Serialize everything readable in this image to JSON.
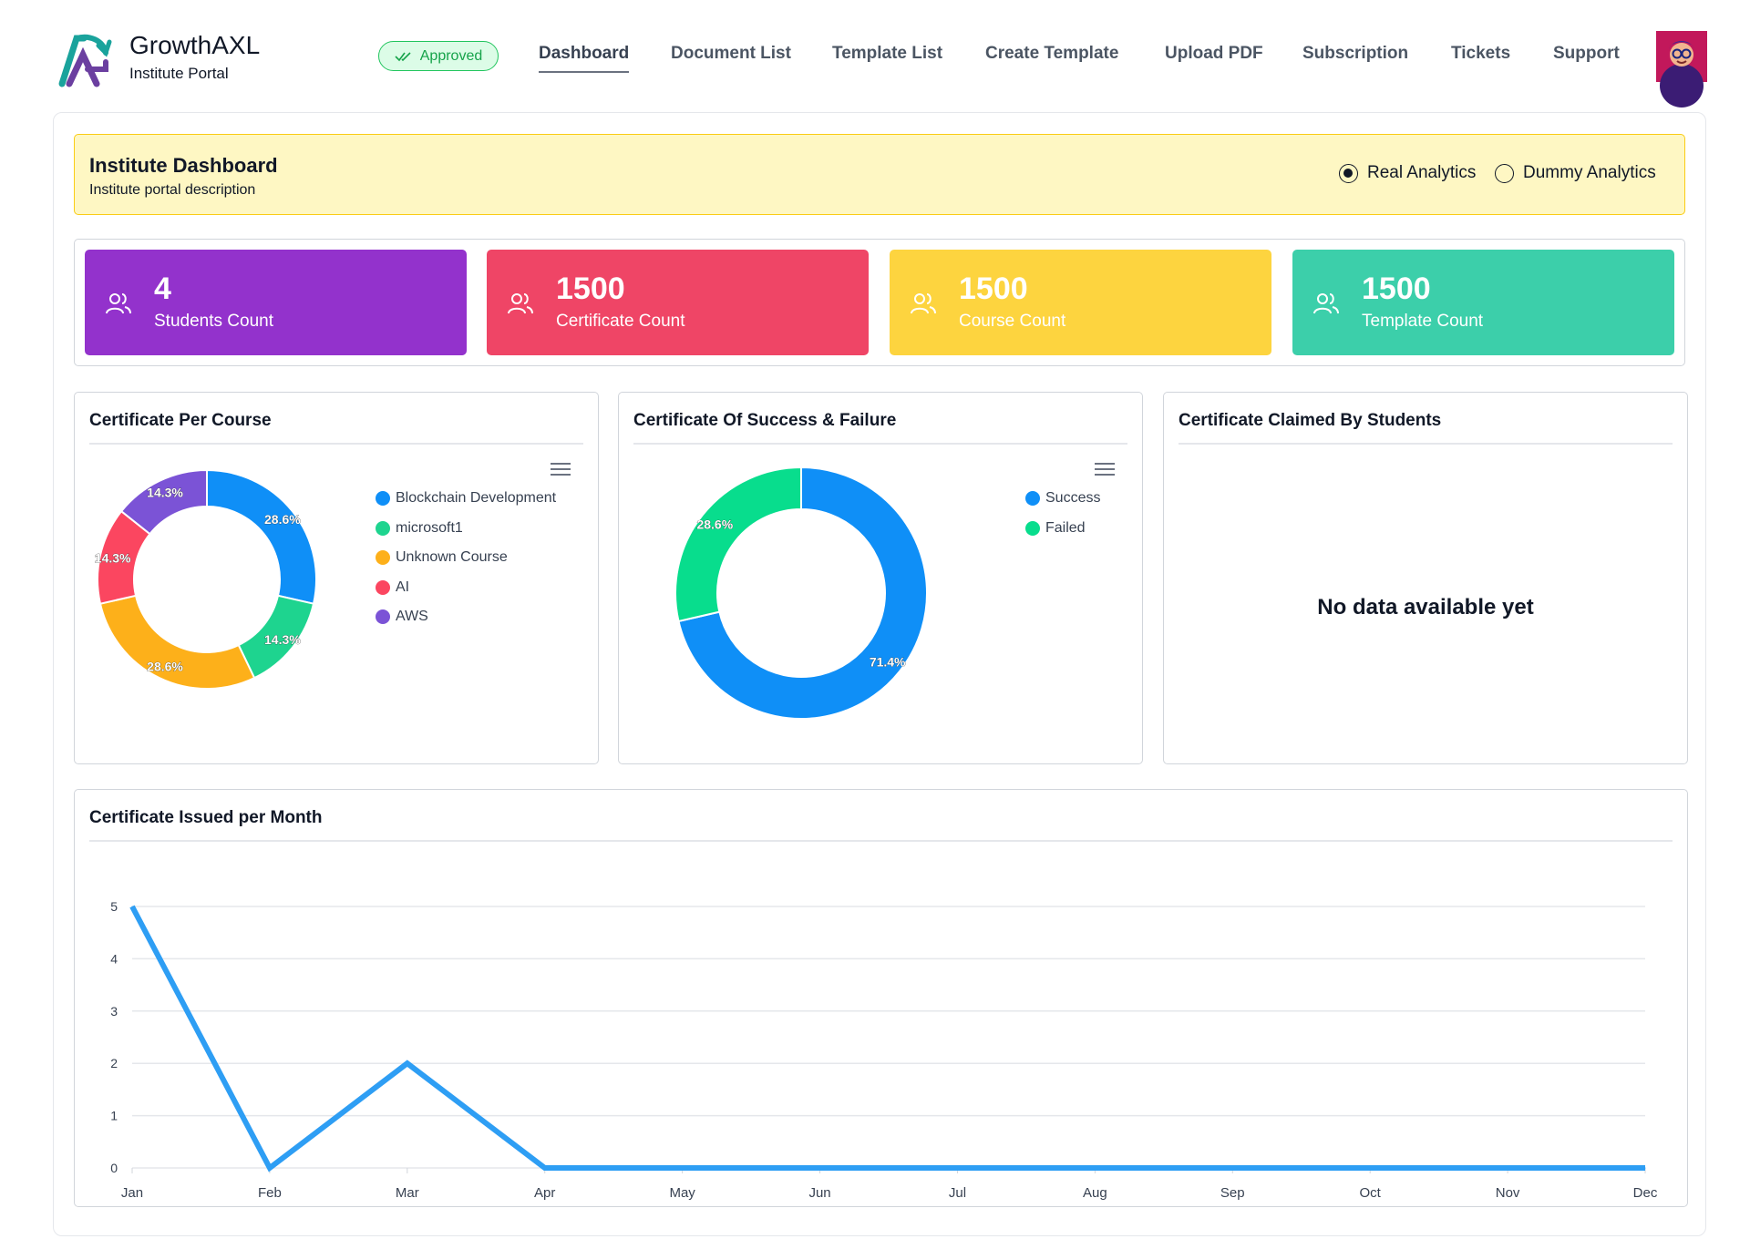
{
  "header": {
    "brand_name": "GrowthAXL",
    "brand_sub": "Institute Portal",
    "status": "Approved",
    "nav": [
      {
        "label": "Dashboard",
        "active": true
      },
      {
        "label": "Document List",
        "active": false
      },
      {
        "label": "Template List",
        "active": false
      },
      {
        "label": "Create Template",
        "active": false
      },
      {
        "label": "Upload PDF",
        "active": false
      },
      {
        "label": "Subscription",
        "active": false
      },
      {
        "label": "Tickets",
        "active": false
      },
      {
        "label": "Support",
        "active": false
      }
    ]
  },
  "banner": {
    "title": "Institute Dashboard",
    "description": "Institute portal description",
    "analytics_options": [
      {
        "label": "Real Analytics",
        "checked": true
      },
      {
        "label": "Dummy Analytics",
        "checked": false
      }
    ]
  },
  "stats": [
    {
      "value": "4",
      "label": "Students Count",
      "color": "#9332cc"
    },
    {
      "value": "1500",
      "label": "Certificate Count",
      "color": "#ef4566"
    },
    {
      "value": "1500",
      "label": "Course Count",
      "color": "#fdd43f"
    },
    {
      "value": "1500",
      "label": "Template Count",
      "color": "#3ccfaa"
    }
  ],
  "panels": {
    "per_course_title": "Certificate Per Course",
    "success_failure_title": "Certificate Of Success & Failure",
    "claimed_title": "Certificate Claimed By Students",
    "claimed_empty": "No data available yet",
    "monthly_title": "Certificate Issued per Month"
  },
  "chart_data": [
    {
      "type": "pie",
      "title": "Certificate Per Course",
      "donut": true,
      "categories": [
        "Blockchain Development",
        "microsoft1",
        "Unknown Course",
        "AI",
        "AWS"
      ],
      "values": [
        28.6,
        14.3,
        28.6,
        14.3,
        14.3
      ],
      "labels": [
        "28.6%",
        "14.3%",
        "28.6%",
        "14.3%",
        "14.3%"
      ],
      "colors": [
        "#0f8ff7",
        "#1ed48f",
        "#fdb01a",
        "#fb4660",
        "#7b53d6"
      ],
      "legend": "right"
    },
    {
      "type": "pie",
      "title": "Certificate Of Success & Failure",
      "donut": true,
      "categories": [
        "Success",
        "Failed"
      ],
      "values": [
        71.4,
        28.6
      ],
      "labels": [
        "71.4%",
        "28.6%"
      ],
      "colors": [
        "#0f8ff7",
        "#08dd8d"
      ],
      "legend": "right"
    },
    {
      "type": "line",
      "title": "Certificate Issued per Month",
      "categories": [
        "Jan",
        "Feb",
        "Mar",
        "Apr",
        "May",
        "Jun",
        "Jul",
        "Aug",
        "Sep",
        "Oct",
        "Nov",
        "Dec"
      ],
      "values": [
        5,
        0,
        2,
        0,
        0,
        0,
        0,
        0,
        0,
        0,
        0,
        0
      ],
      "yticks": [
        "0",
        "1",
        "2",
        "3",
        "4",
        "5"
      ],
      "ylim": [
        0,
        5
      ],
      "color": "#2e9ef4",
      "grid": true
    }
  ],
  "icons": {
    "approved": "double-check-icon",
    "stat": "users-icon",
    "menu": "hamburger-menu-icon"
  }
}
